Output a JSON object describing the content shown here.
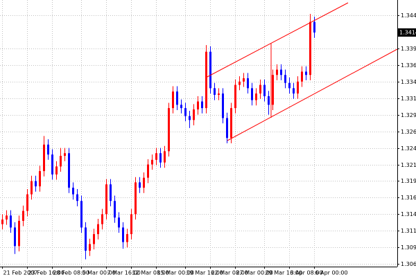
{
  "chart_data": {
    "type": "candlestick",
    "categories": [
      "21 Feb 2007",
      null,
      null,
      null,
      null,
      null,
      "23 Feb 16:00",
      null,
      null,
      null,
      null,
      null,
      "28 Feb 08:00",
      null,
      null,
      null,
      null,
      null,
      null,
      "5 Mar 00:00",
      null,
      null,
      null,
      null,
      null,
      "7 Mar 16:00",
      null,
      null,
      null,
      null,
      null,
      "12 Mar 08:00",
      null,
      null,
      null,
      null,
      null,
      "15 Mar 00:00",
      null,
      null,
      null,
      null,
      null,
      null,
      "19 Mar 16:00",
      null,
      null,
      null,
      null,
      null,
      "22 Mar 08:00",
      null,
      null,
      null,
      null,
      null,
      "27 Mar 00:00",
      null,
      null,
      null,
      null,
      null,
      null,
      "29 Mar 16:00",
      null,
      null,
      null,
      null,
      null,
      "3 Apr 08:00",
      null,
      null,
      null,
      null,
      null,
      "6 Apr 00:00"
    ],
    "open": [
      1.3125,
      1.3132,
      1.3138,
      1.312,
      1.3092,
      1.313,
      1.3145,
      1.317,
      1.319,
      1.3182,
      1.3205,
      1.3245,
      1.323,
      1.32,
      1.3212,
      1.3228,
      1.3232,
      1.318,
      1.317,
      1.316,
      1.312,
      1.3085,
      1.3095,
      1.311,
      1.3125,
      1.314,
      1.3185,
      1.316,
      1.3135,
      1.312,
      1.3098,
      1.311,
      1.314,
      1.3188,
      1.318,
      1.3195,
      1.3215,
      1.3222,
      1.3232,
      1.3218,
      1.3235,
      1.33,
      1.3325,
      1.3305,
      1.33,
      1.3288,
      1.3282,
      1.3298,
      1.331,
      1.33,
      1.3385,
      1.333,
      1.332,
      1.3322,
      1.3285,
      1.3255,
      1.33,
      1.3335,
      1.334,
      1.3345,
      1.333,
      1.3312,
      1.3322,
      1.3335,
      1.3318,
      1.3305,
      1.335,
      1.3358,
      1.335,
      1.3338,
      1.333,
      1.3322,
      1.334,
      1.3355,
      1.335,
      1.343
    ],
    "high": [
      1.314,
      1.3146,
      1.3146,
      1.3128,
      1.3138,
      1.3153,
      1.3178,
      1.3198,
      1.3198,
      1.3213,
      1.3258,
      1.3253,
      1.3238,
      1.322,
      1.324,
      1.324,
      1.324,
      1.3188,
      1.3178,
      1.3168,
      1.3128,
      1.3103,
      1.3118,
      1.3133,
      1.3148,
      1.3193,
      1.3193,
      1.3168,
      1.3143,
      1.3128,
      1.3118,
      1.3148,
      1.3196,
      1.3196,
      1.3203,
      1.3223,
      1.323,
      1.324,
      1.324,
      1.3243,
      1.3308,
      1.3333,
      1.3333,
      1.3313,
      1.3308,
      1.3296,
      1.3306,
      1.3318,
      1.3318,
      1.3395,
      1.3393,
      1.3338,
      1.333,
      1.333,
      1.3293,
      1.3308,
      1.3343,
      1.3348,
      1.3353,
      1.3353,
      1.3338,
      1.333,
      1.3343,
      1.3343,
      1.3326,
      1.3358,
      1.3366,
      1.3366,
      1.3358,
      1.3346,
      1.3338,
      1.3348,
      1.3363,
      1.3363,
      1.3442,
      1.3438
    ],
    "low": [
      1.3117,
      1.3124,
      1.3112,
      1.308,
      1.3084,
      1.3122,
      1.3137,
      1.3162,
      1.3174,
      1.3174,
      1.3197,
      1.3222,
      1.3192,
      1.3192,
      1.3204,
      1.322,
      1.3172,
      1.3162,
      1.3152,
      1.3112,
      1.3072,
      1.3077,
      1.3087,
      1.3102,
      1.3117,
      1.3132,
      1.3152,
      1.3127,
      1.3112,
      1.3088,
      1.309,
      1.3102,
      1.3132,
      1.3172,
      1.3172,
      1.3187,
      1.3207,
      1.3214,
      1.321,
      1.321,
      1.3227,
      1.3292,
      1.3297,
      1.3292,
      1.328,
      1.327,
      1.3274,
      1.329,
      1.3292,
      1.3292,
      1.3322,
      1.3312,
      1.3312,
      1.3277,
      1.3247,
      1.3247,
      1.3292,
      1.3327,
      1.3332,
      1.3322,
      1.3304,
      1.3304,
      1.3314,
      1.331,
      1.329,
      1.3297,
      1.3342,
      1.3342,
      1.333,
      1.3322,
      1.3314,
      1.3314,
      1.3332,
      1.3342,
      1.3342,
      1.3406
    ],
    "close": [
      1.3132,
      1.3138,
      1.312,
      1.3092,
      1.313,
      1.3145,
      1.317,
      1.319,
      1.3182,
      1.3205,
      1.3245,
      1.323,
      1.32,
      1.3212,
      1.3228,
      1.3232,
      1.318,
      1.317,
      1.316,
      1.312,
      1.3085,
      1.3095,
      1.311,
      1.3125,
      1.314,
      1.3185,
      1.316,
      1.3135,
      1.312,
      1.3098,
      1.311,
      1.314,
      1.3188,
      1.318,
      1.3195,
      1.3215,
      1.3222,
      1.3232,
      1.3218,
      1.3235,
      1.33,
      1.3325,
      1.3305,
      1.33,
      1.3288,
      1.3282,
      1.3298,
      1.331,
      1.33,
      1.3385,
      1.333,
      1.332,
      1.3322,
      1.3285,
      1.3255,
      1.33,
      1.3335,
      1.334,
      1.3345,
      1.333,
      1.3312,
      1.3322,
      1.3335,
      1.3318,
      1.3305,
      1.335,
      1.3358,
      1.335,
      1.3338,
      1.333,
      1.3322,
      1.334,
      1.3355,
      1.335,
      1.343,
      1.3414
    ],
    "up_color": "#ff0000",
    "down_color": "#0000ff",
    "ylim": [
      1.3061,
      1.3463
    ],
    "yticks": [
      {
        "value": 1.344,
        "label": "1.3440"
      },
      {
        "value": 1.339,
        "label": "1.3390"
      },
      1.3365,
      {
        "value": 1.334,
        "label": "1.3340"
      },
      1.3315,
      {
        "value": 1.329,
        "label": "1.3290"
      },
      1.3265,
      {
        "value": 1.324,
        "label": "1.3240"
      },
      1.3215,
      {
        "value": 1.319,
        "label": "1.3190"
      },
      1.3165,
      {
        "value": 1.314,
        "label": "1.3140"
      },
      1.3115,
      {
        "value": 1.309,
        "label": "1.3090"
      },
      1.3065
    ],
    "grid": true
  }
}
